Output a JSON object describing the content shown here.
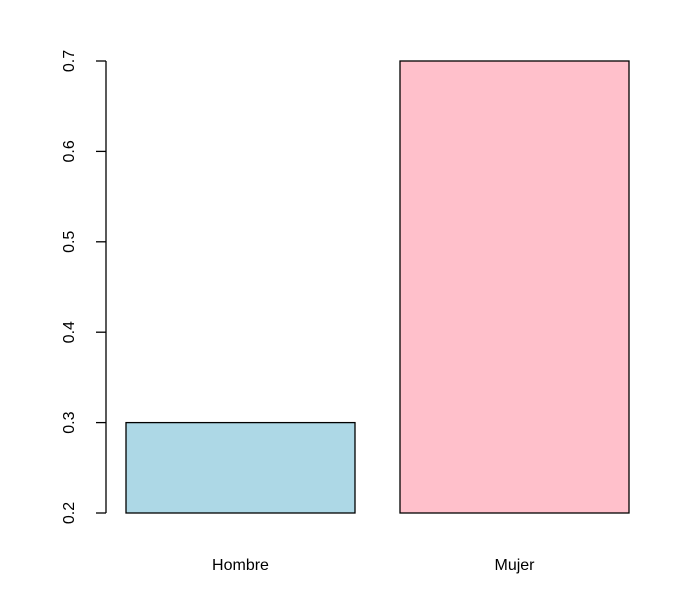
{
  "chart_data": {
    "type": "bar",
    "categories": [
      "Hombre",
      "Mujer"
    ],
    "values": [
      0.3,
      0.7
    ],
    "colors": [
      "#add8e6",
      "#ffc0cb"
    ],
    "ylim": [
      0.2,
      0.7
    ],
    "yticks": [
      "0.2",
      "0.3",
      "0.4",
      "0.5",
      "0.6",
      "0.7"
    ],
    "grid": false,
    "legend": "none"
  }
}
